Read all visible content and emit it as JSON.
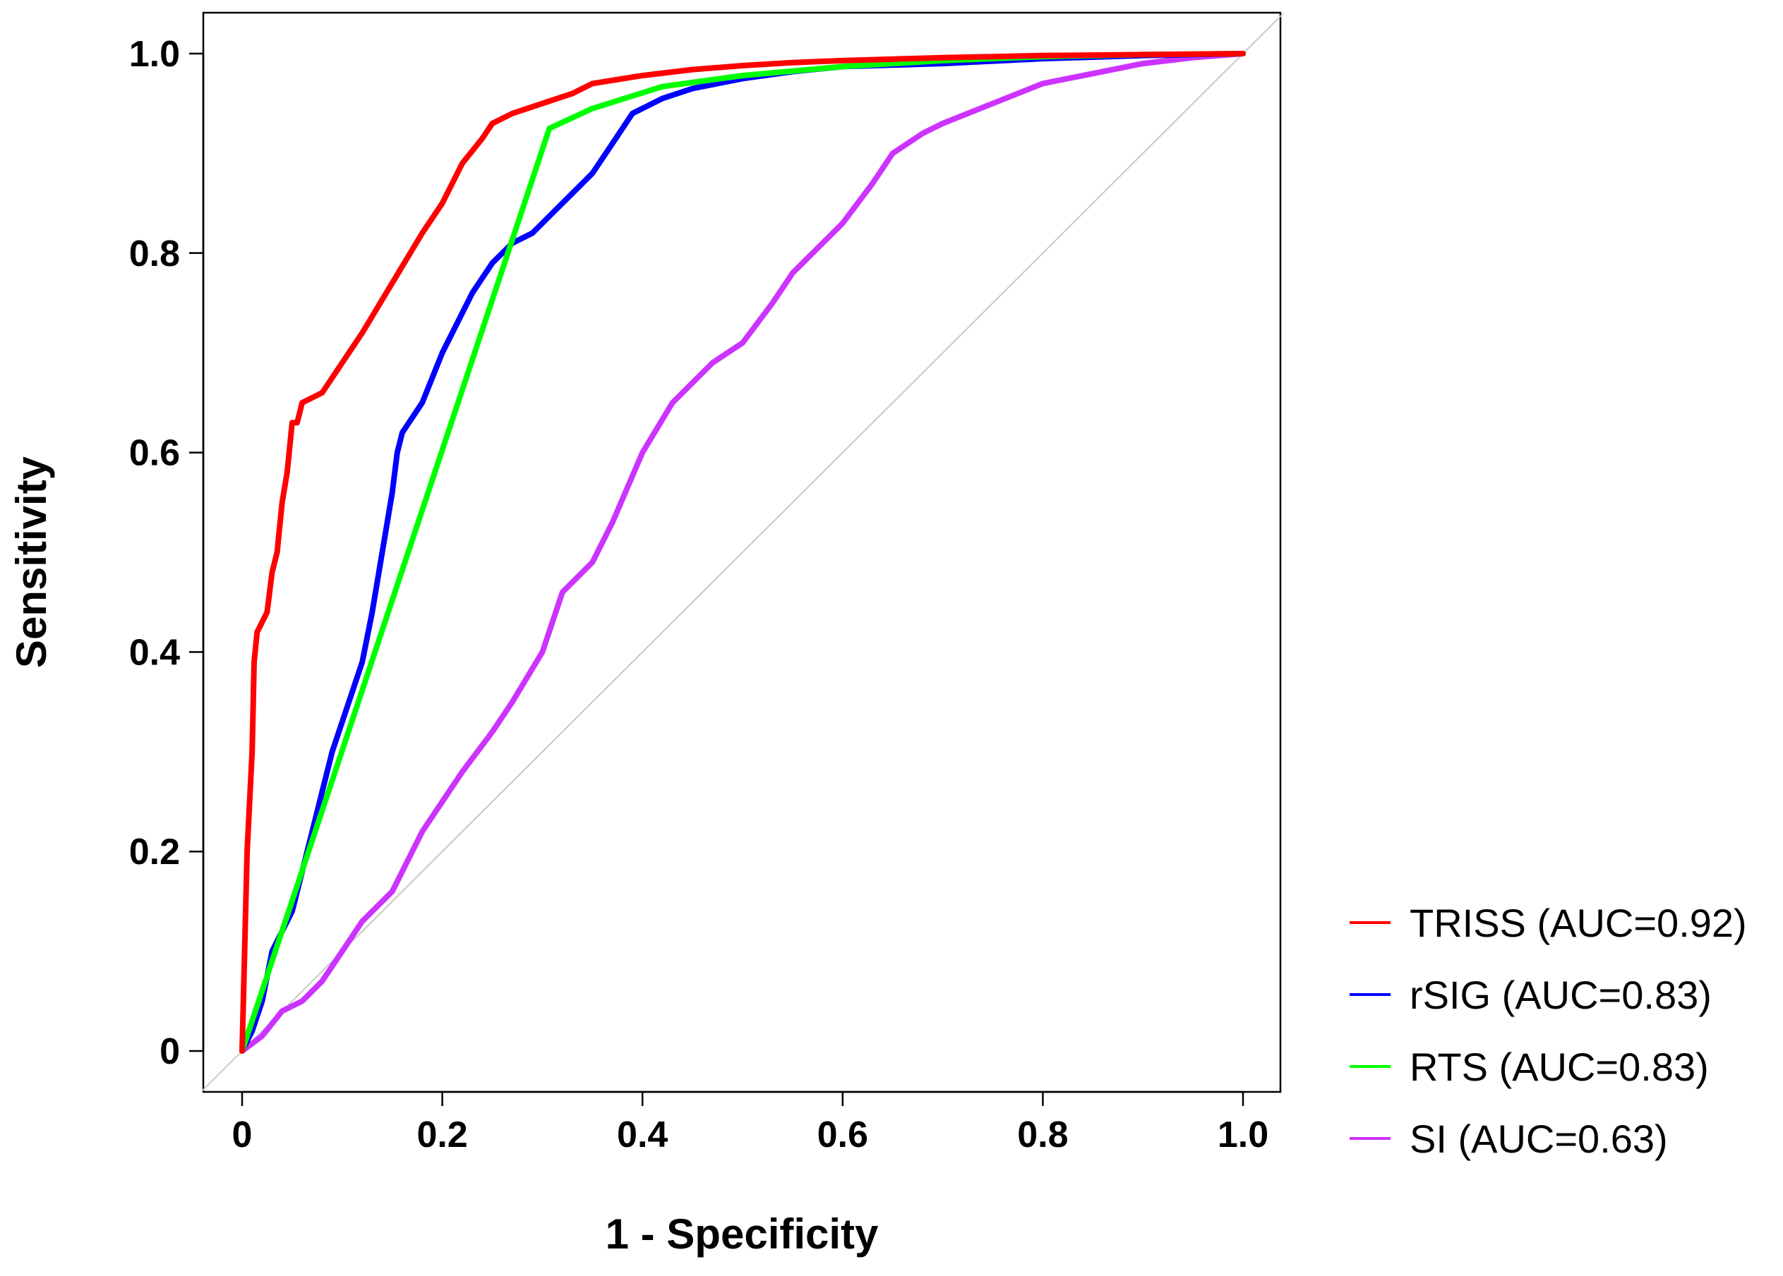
{
  "chart_data": {
    "type": "line",
    "title": "",
    "xlabel": "1 - Specificity",
    "ylabel": "Sensitivity",
    "xlim": [
      0,
      1
    ],
    "ylim": [
      0,
      1
    ],
    "grid": false,
    "legend_position": "bottom-right",
    "x_ticks": [
      {
        "value": 0,
        "label": "0"
      },
      {
        "value": 0.2,
        "label": "0.2"
      },
      {
        "value": 0.4,
        "label": "0.4"
      },
      {
        "value": 0.6,
        "label": "0.6"
      },
      {
        "value": 0.8,
        "label": "0.8"
      },
      {
        "value": 1.0,
        "label": "1.0"
      }
    ],
    "y_ticks": [
      {
        "value": 0,
        "label": "0"
      },
      {
        "value": 0.2,
        "label": "0.2"
      },
      {
        "value": 0.4,
        "label": "0.4"
      },
      {
        "value": 0.6,
        "label": "0.6"
      },
      {
        "value": 0.8,
        "label": "0.8"
      },
      {
        "value": 1.0,
        "label": "1.0"
      }
    ],
    "reference_line": {
      "x": [
        0,
        1
      ],
      "y": [
        0,
        1
      ],
      "color": "#c8c8c8"
    },
    "series": [
      {
        "name": "TRISS",
        "legend_label": "TRISS (AUC=0.92)",
        "auc": 0.92,
        "color": "#ff0000",
        "x": [
          0,
          0.005,
          0.01,
          0.012,
          0.015,
          0.02,
          0.025,
          0.03,
          0.035,
          0.04,
          0.045,
          0.05,
          0.055,
          0.06,
          0.07,
          0.08,
          0.1,
          0.12,
          0.15,
          0.18,
          0.2,
          0.22,
          0.24,
          0.25,
          0.27,
          0.3,
          0.33,
          0.35,
          0.4,
          0.45,
          0.5,
          0.55,
          0.6,
          0.7,
          0.8,
          0.9,
          1.0
        ],
        "y": [
          0,
          0.2,
          0.3,
          0.39,
          0.42,
          0.43,
          0.44,
          0.48,
          0.5,
          0.55,
          0.58,
          0.63,
          0.63,
          0.65,
          0.655,
          0.66,
          0.69,
          0.72,
          0.77,
          0.82,
          0.85,
          0.89,
          0.915,
          0.93,
          0.94,
          0.95,
          0.96,
          0.97,
          0.978,
          0.984,
          0.988,
          0.991,
          0.993,
          0.996,
          0.998,
          0.999,
          1.0
        ]
      },
      {
        "name": "rSIG",
        "legend_label": "rSIG (AUC=0.83)",
        "auc": 0.83,
        "color": "#0000ff",
        "x": [
          0,
          0.01,
          0.02,
          0.03,
          0.05,
          0.06,
          0.07,
          0.08,
          0.09,
          0.1,
          0.11,
          0.12,
          0.13,
          0.14,
          0.15,
          0.155,
          0.16,
          0.18,
          0.2,
          0.22,
          0.23,
          0.25,
          0.27,
          0.29,
          0.31,
          0.33,
          0.35,
          0.37,
          0.39,
          0.42,
          0.45,
          0.5,
          0.55,
          0.6,
          0.7,
          0.8,
          0.9,
          1.0
        ],
        "y": [
          0,
          0.02,
          0.05,
          0.1,
          0.14,
          0.18,
          0.22,
          0.26,
          0.3,
          0.33,
          0.36,
          0.39,
          0.44,
          0.5,
          0.56,
          0.6,
          0.62,
          0.65,
          0.7,
          0.74,
          0.76,
          0.79,
          0.81,
          0.82,
          0.84,
          0.86,
          0.88,
          0.91,
          0.94,
          0.955,
          0.965,
          0.975,
          0.982,
          0.987,
          0.99,
          0.995,
          0.998,
          1.0
        ]
      },
      {
        "name": "RTS",
        "legend_label": "RTS (AUC=0.83)",
        "auc": 0.83,
        "color": "#00ff00",
        "x": [
          0,
          0.307,
          0.35,
          0.42,
          0.5,
          0.6,
          0.7,
          0.8,
          0.9,
          1.0
        ],
        "y": [
          0,
          0.925,
          0.945,
          0.967,
          0.978,
          0.987,
          0.993,
          0.997,
          0.999,
          1.0
        ]
      },
      {
        "name": "SI",
        "legend_label": "SI (AUC=0.63)",
        "auc": 0.63,
        "color": "#cc33ff",
        "x": [
          0,
          0.02,
          0.04,
          0.06,
          0.08,
          0.1,
          0.12,
          0.15,
          0.18,
          0.2,
          0.22,
          0.25,
          0.27,
          0.3,
          0.32,
          0.35,
          0.37,
          0.4,
          0.43,
          0.47,
          0.5,
          0.53,
          0.55,
          0.57,
          0.6,
          0.63,
          0.65,
          0.68,
          0.7,
          0.75,
          0.8,
          0.85,
          0.9,
          0.95,
          1.0
        ],
        "y": [
          0,
          0.015,
          0.04,
          0.05,
          0.07,
          0.1,
          0.13,
          0.16,
          0.22,
          0.25,
          0.28,
          0.32,
          0.35,
          0.4,
          0.46,
          0.49,
          0.53,
          0.6,
          0.65,
          0.69,
          0.71,
          0.75,
          0.78,
          0.8,
          0.83,
          0.87,
          0.9,
          0.92,
          0.93,
          0.95,
          0.97,
          0.98,
          0.99,
          0.996,
          1.0
        ]
      }
    ]
  }
}
